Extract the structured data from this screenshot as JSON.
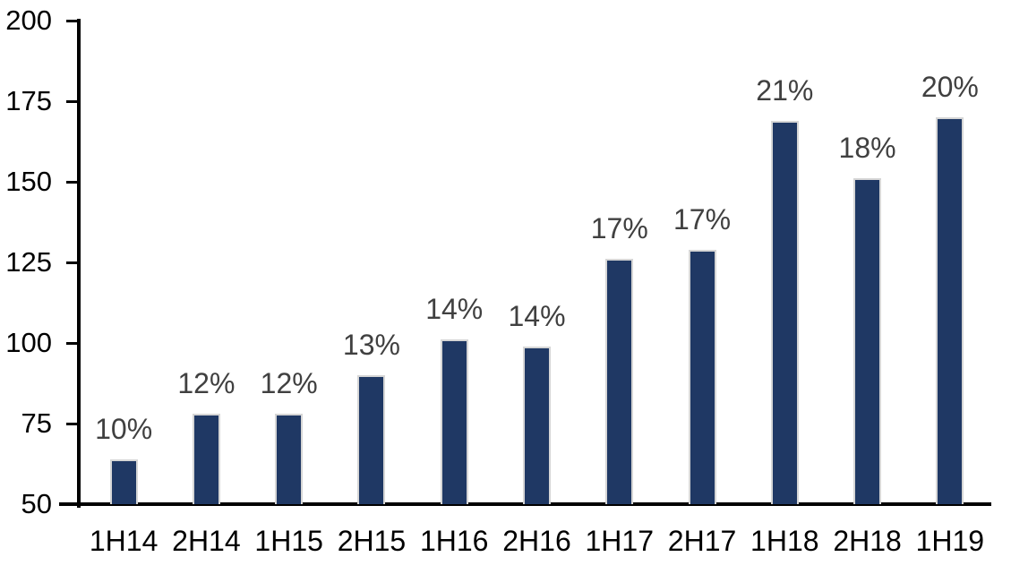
{
  "chart_data": {
    "type": "bar",
    "title": "",
    "xlabel": "",
    "ylabel": "",
    "categories": [
      "1H14",
      "2H14",
      "1H15",
      "2H15",
      "1H16",
      "2H16",
      "1H17",
      "2H17",
      "1H18",
      "2H18",
      "1H19"
    ],
    "values": [
      64,
      78,
      78,
      90,
      101,
      99,
      126,
      129,
      169,
      151,
      170
    ],
    "point_labels": [
      "10%",
      "12%",
      "12%",
      "13%",
      "14%",
      "14%",
      "17%",
      "17%",
      "21%",
      "18%",
      "20%"
    ],
    "ylim": [
      50,
      200
    ],
    "yticks": [
      50,
      75,
      100,
      125,
      150,
      175,
      200
    ],
    "grid": false,
    "legend": "none",
    "colors": {
      "bar_fill": "#1f3864",
      "bar_border": "#d6d6d6",
      "point_label": "#404040",
      "axis_text": "#000000",
      "axis_line": "#000000",
      "background": "#ffffff"
    }
  }
}
